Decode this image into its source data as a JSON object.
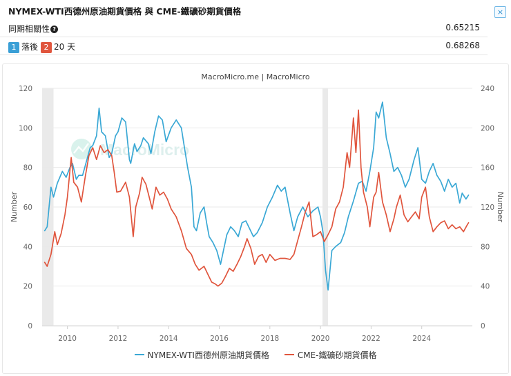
{
  "header": {
    "title": "NYMEX-WTI西德州原油期貨價格 與 CME-鐵礦砂期貨價格",
    "close_icon": "×"
  },
  "stats": {
    "correlation_label": "同期相關性",
    "correlation_value": "0.65215",
    "lag_badge1": "1",
    "lag_label": "落後",
    "lag_badge2": "2",
    "lag_days": "20 天",
    "lag_value": "0.68268"
  },
  "chart_data": {
    "type": "line",
    "title": "MacroMicro.me | MacroMicro",
    "watermark": "MacroMicro",
    "xlabel": "",
    "ylabel_left": "Number",
    "ylabel_right": "Number",
    "xlim": [
      2009.0,
      2026.0
    ],
    "ylim_left": [
      0,
      120
    ],
    "ylim_right": [
      0,
      240
    ],
    "x_ticks": [
      "2010",
      "2012",
      "2014",
      "2016",
      "2018",
      "2020",
      "2022",
      "2024"
    ],
    "y_ticks_left": [
      "0",
      "20",
      "40",
      "60",
      "80",
      "100",
      "120"
    ],
    "y_ticks_right": [
      "0",
      "40",
      "80",
      "120",
      "160",
      "200",
      "240"
    ],
    "shaded_periods": [
      [
        2009.0,
        2009.45
      ],
      [
        2020.08,
        2020.3
      ]
    ],
    "colors": {
      "wti": "#3aa8d5",
      "iron": "#e0553d",
      "shade": "#eaeaea",
      "grid": "#e9e9e9"
    },
    "series": [
      {
        "name": "NYMEX-WTI西德州原油期貨價格",
        "axis": "left",
        "x": [
          2009.1,
          2009.2,
          2009.35,
          2009.45,
          2009.6,
          2009.8,
          2009.95,
          2010.1,
          2010.2,
          2010.35,
          2010.45,
          2010.6,
          2010.75,
          2010.9,
          2011.0,
          2011.15,
          2011.25,
          2011.35,
          2011.5,
          2011.65,
          2011.75,
          2011.9,
          2012.0,
          2012.15,
          2012.3,
          2012.45,
          2012.5,
          2012.65,
          2012.75,
          2012.9,
          2013.0,
          2013.2,
          2013.3,
          2013.45,
          2013.6,
          2013.75,
          2013.9,
          2014.1,
          2014.3,
          2014.5,
          2014.6,
          2014.75,
          2014.9,
          2015.0,
          2015.1,
          2015.25,
          2015.4,
          2015.5,
          2015.6,
          2015.75,
          2015.9,
          2016.05,
          2016.15,
          2016.3,
          2016.45,
          2016.6,
          2016.75,
          2016.9,
          2017.05,
          2017.2,
          2017.35,
          2017.5,
          2017.7,
          2017.9,
          2018.1,
          2018.3,
          2018.45,
          2018.6,
          2018.8,
          2018.95,
          2019.1,
          2019.3,
          2019.5,
          2019.7,
          2019.9,
          2020.0,
          2020.1,
          2020.2,
          2020.3,
          2020.45,
          2020.6,
          2020.8,
          2020.95,
          2021.1,
          2021.3,
          2021.5,
          2021.65,
          2021.8,
          2021.95,
          2022.1,
          2022.2,
          2022.3,
          2022.45,
          2022.6,
          2022.75,
          2022.9,
          2023.05,
          2023.2,
          2023.35,
          2023.5,
          2023.7,
          2023.85,
          2024.0,
          2024.15,
          2024.3,
          2024.45,
          2024.6,
          2024.75,
          2024.9,
          2025.05,
          2025.2,
          2025.35,
          2025.5,
          2025.6,
          2025.75,
          2025.85
        ],
        "values": [
          48,
          50,
          70,
          65,
          72,
          78,
          75,
          80,
          82,
          74,
          76,
          76,
          83,
          90,
          91,
          96,
          110,
          98,
          96,
          85,
          87,
          96,
          98,
          105,
          103,
          84,
          82,
          92,
          88,
          91,
          95,
          92,
          87,
          98,
          106,
          104,
          93,
          100,
          104,
          100,
          92,
          80,
          70,
          50,
          48,
          57,
          60,
          52,
          45,
          42,
          38,
          31,
          37,
          46,
          50,
          48,
          45,
          52,
          53,
          49,
          45,
          47,
          52,
          60,
          65,
          71,
          68,
          70,
          57,
          48,
          55,
          60,
          55,
          58,
          60,
          55,
          47,
          28,
          18,
          38,
          40,
          42,
          47,
          55,
          63,
          72,
          73,
          68,
          78,
          90,
          108,
          105,
          113,
          95,
          87,
          78,
          80,
          76,
          70,
          74,
          84,
          90,
          74,
          72,
          78,
          82,
          76,
          73,
          68,
          74,
          70,
          72,
          62,
          67,
          64,
          66
        ]
      },
      {
        "name": "CME-鐵礦砂期貨價格",
        "axis": "right",
        "x": [
          2009.1,
          2009.2,
          2009.35,
          2009.5,
          2009.6,
          2009.75,
          2009.9,
          2010.0,
          2010.15,
          2010.25,
          2010.4,
          2010.55,
          2010.7,
          2010.85,
          2011.0,
          2011.15,
          2011.3,
          2011.45,
          2011.6,
          2011.75,
          2011.85,
          2011.95,
          2012.1,
          2012.3,
          2012.45,
          2012.6,
          2012.7,
          2012.85,
          2012.95,
          2013.1,
          2013.25,
          2013.35,
          2013.5,
          2013.65,
          2013.8,
          2013.95,
          2014.1,
          2014.3,
          2014.5,
          2014.7,
          2014.9,
          2015.05,
          2015.2,
          2015.4,
          2015.55,
          2015.7,
          2015.85,
          2015.95,
          2016.1,
          2016.25,
          2016.4,
          2016.55,
          2016.7,
          2016.85,
          2017.0,
          2017.1,
          2017.25,
          2017.4,
          2017.55,
          2017.7,
          2017.85,
          2018.0,
          2018.2,
          2018.4,
          2018.6,
          2018.8,
          2018.95,
          2019.1,
          2019.25,
          2019.4,
          2019.55,
          2019.7,
          2019.85,
          2020.0,
          2020.15,
          2020.3,
          2020.45,
          2020.6,
          2020.75,
          2020.9,
          2021.05,
          2021.15,
          2021.3,
          2021.4,
          2021.5,
          2021.6,
          2021.7,
          2021.85,
          2021.95,
          2022.1,
          2022.2,
          2022.3,
          2022.45,
          2022.6,
          2022.75,
          2022.9,
          2023.0,
          2023.15,
          2023.3,
          2023.45,
          2023.6,
          2023.75,
          2023.9,
          2024.0,
          2024.15,
          2024.3,
          2024.45,
          2024.6,
          2024.75,
          2024.9,
          2025.05,
          2025.2,
          2025.35,
          2025.5,
          2025.65,
          2025.8,
          2025.85
        ],
        "values": [
          64,
          60,
          72,
          95,
          82,
          93,
          112,
          130,
          170,
          145,
          140,
          125,
          150,
          172,
          180,
          168,
          182,
          175,
          178,
          172,
          155,
          135,
          136,
          145,
          130,
          90,
          120,
          134,
          150,
          143,
          128,
          118,
          140,
          132,
          135,
          128,
          118,
          110,
          96,
          78,
          72,
          62,
          56,
          60,
          52,
          44,
          42,
          40,
          43,
          50,
          58,
          55,
          62,
          70,
          80,
          88,
          78,
          62,
          70,
          72,
          64,
          72,
          66,
          68,
          68,
          67,
          72,
          86,
          100,
          115,
          125,
          90,
          92,
          95,
          85,
          92,
          100,
          118,
          125,
          140,
          175,
          160,
          210,
          175,
          218,
          160,
          135,
          120,
          100,
          130,
          135,
          155,
          125,
          112,
          95,
          108,
          120,
          132,
          112,
          105,
          110,
          115,
          108,
          130,
          140,
          110,
          95,
          100,
          104,
          106,
          98,
          102,
          98,
          100,
          95,
          102,
          104
        ]
      }
    ]
  }
}
